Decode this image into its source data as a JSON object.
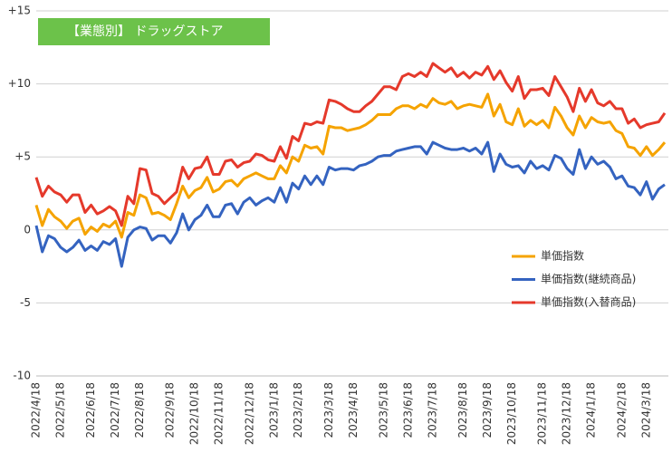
{
  "chart_data": {
    "type": "line",
    "title": "【業態別】 ドラッグストア",
    "title_color": "#6cc24a",
    "categories": [
      "2022/4/18",
      null,
      null,
      null,
      "2022/5/18",
      null,
      null,
      null,
      null,
      "2022/6/18",
      null,
      null,
      null,
      "2022/7/18",
      null,
      null,
      null,
      "2022/8/18",
      null,
      null,
      null,
      null,
      "2022/9/18",
      null,
      null,
      null,
      "2022/10/18",
      null,
      null,
      null,
      "2022/11/18",
      null,
      null,
      null,
      null,
      "2022/12/18",
      null,
      null,
      null,
      "2023/1/18",
      null,
      null,
      null,
      "2023/2/18",
      null,
      null,
      null,
      null,
      "2023/3/18",
      null,
      null,
      null,
      "2023/4/18",
      null,
      null,
      null,
      null,
      "2023/5/18",
      null,
      null,
      null,
      "2023/6/18",
      null,
      null,
      null,
      "2023/7/18",
      null,
      null,
      null,
      null,
      "2023/8/18",
      null,
      null,
      null,
      "2023/9/18",
      null,
      null,
      null,
      "2023/10/18",
      null,
      null,
      null,
      null,
      "2023/11/18",
      null,
      null,
      null,
      "2023/12/18",
      null,
      null,
      null,
      "2024/1/18",
      null,
      null,
      null,
      null,
      "2024/2/18",
      null,
      null,
      null,
      "2024/3/18",
      null,
      null,
      null
    ],
    "series": [
      {
        "name": "単価指数",
        "color": "#f5a300",
        "values": [
          1.7,
          0.3,
          1.4,
          0.9,
          0.6,
          0.1,
          0.6,
          0.8,
          -0.3,
          0.2,
          -0.1,
          0.4,
          0.2,
          0.6,
          -0.5,
          1.2,
          1.0,
          2.4,
          2.2,
          1.1,
          1.2,
          1.0,
          0.7,
          1.8,
          3.0,
          2.2,
          2.7,
          2.9,
          3.6,
          2.6,
          2.8,
          3.3,
          3.4,
          3.0,
          3.5,
          3.7,
          3.9,
          3.7,
          3.5,
          3.5,
          4.4,
          3.9,
          5.0,
          4.7,
          5.8,
          5.6,
          5.7,
          5.2,
          7.1,
          7.0,
          7.0,
          6.8,
          6.9,
          7.0,
          7.2,
          7.5,
          7.9,
          7.9,
          7.9,
          8.3,
          8.5,
          8.5,
          8.3,
          8.6,
          8.4,
          9.0,
          8.7,
          8.6,
          8.8,
          8.3,
          8.5,
          8.6,
          8.5,
          8.4,
          9.3,
          7.8,
          8.6,
          7.4,
          7.2,
          8.3,
          7.1,
          7.5,
          7.2,
          7.5,
          7.0,
          8.4,
          7.8,
          7.0,
          6.5,
          7.8,
          7.0,
          7.7,
          7.4,
          7.3,
          7.4,
          6.8,
          6.6,
          5.7,
          5.6,
          5.1,
          5.7,
          5.1,
          5.5,
          6.0
        ]
      },
      {
        "name": "単価指数(継続商品)",
        "color": "#3463c0",
        "values": [
          0.3,
          -1.5,
          -0.4,
          -0.6,
          -1.2,
          -1.5,
          -1.2,
          -0.7,
          -1.4,
          -1.1,
          -1.4,
          -0.8,
          -1.0,
          -0.6,
          -2.5,
          -0.5,
          0.0,
          0.2,
          0.1,
          -0.7,
          -0.4,
          -0.4,
          -0.9,
          -0.2,
          1.1,
          0.0,
          0.7,
          1.0,
          1.7,
          0.9,
          0.9,
          1.7,
          1.8,
          1.1,
          1.9,
          2.2,
          1.7,
          2.0,
          2.2,
          1.9,
          2.9,
          1.9,
          3.2,
          2.8,
          3.7,
          3.1,
          3.7,
          3.1,
          4.3,
          4.1,
          4.2,
          4.2,
          4.1,
          4.4,
          4.5,
          4.7,
          5.0,
          5.1,
          5.1,
          5.4,
          5.5,
          5.6,
          5.7,
          5.7,
          5.2,
          6.0,
          5.8,
          5.6,
          5.5,
          5.5,
          5.6,
          5.4,
          5.6,
          5.2,
          6.0,
          4.0,
          5.2,
          4.5,
          4.3,
          4.4,
          3.9,
          4.7,
          4.2,
          4.4,
          4.1,
          5.1,
          4.9,
          4.2,
          3.8,
          5.5,
          4.2,
          5.0,
          4.5,
          4.7,
          4.3,
          3.5,
          3.7,
          3.0,
          2.9,
          2.4,
          3.3,
          2.1,
          2.8,
          3.1
        ]
      },
      {
        "name": "単価指数(入替商品)",
        "color": "#e5392b",
        "values": [
          3.6,
          2.3,
          3.0,
          2.6,
          2.4,
          1.9,
          2.4,
          2.4,
          1.2,
          1.7,
          1.1,
          1.3,
          1.6,
          1.3,
          0.3,
          2.3,
          1.8,
          4.2,
          4.1,
          2.5,
          2.3,
          1.8,
          2.2,
          2.6,
          4.3,
          3.5,
          4.2,
          4.3,
          5.0,
          3.8,
          3.8,
          4.7,
          4.8,
          4.3,
          4.6,
          4.7,
          5.2,
          5.1,
          4.8,
          4.7,
          5.7,
          4.9,
          6.4,
          6.1,
          7.3,
          7.2,
          7.4,
          7.3,
          8.9,
          8.8,
          8.6,
          8.3,
          8.1,
          8.1,
          8.5,
          8.8,
          9.3,
          9.8,
          9.8,
          9.6,
          10.5,
          10.7,
          10.5,
          10.8,
          10.5,
          11.4,
          11.1,
          10.8,
          11.1,
          10.5,
          10.8,
          10.4,
          10.8,
          10.6,
          11.2,
          10.3,
          10.9,
          10.1,
          9.5,
          10.5,
          9.0,
          9.6,
          9.6,
          9.7,
          9.2,
          10.5,
          9.8,
          9.1,
          8.1,
          9.7,
          8.8,
          9.6,
          8.7,
          8.5,
          8.8,
          8.3,
          8.3,
          7.3,
          7.6,
          7.0,
          7.2,
          7.3,
          7.4,
          8.0
        ]
      }
    ],
    "ylim": [
      -10,
      15
    ],
    "yticks": [
      -10,
      -5,
      0,
      {
        "value": 5,
        "label": "+5"
      },
      {
        "value": 10,
        "label": "+10"
      },
      {
        "value": 15,
        "label": "+15"
      }
    ],
    "grid": true,
    "legend_position": "right"
  }
}
